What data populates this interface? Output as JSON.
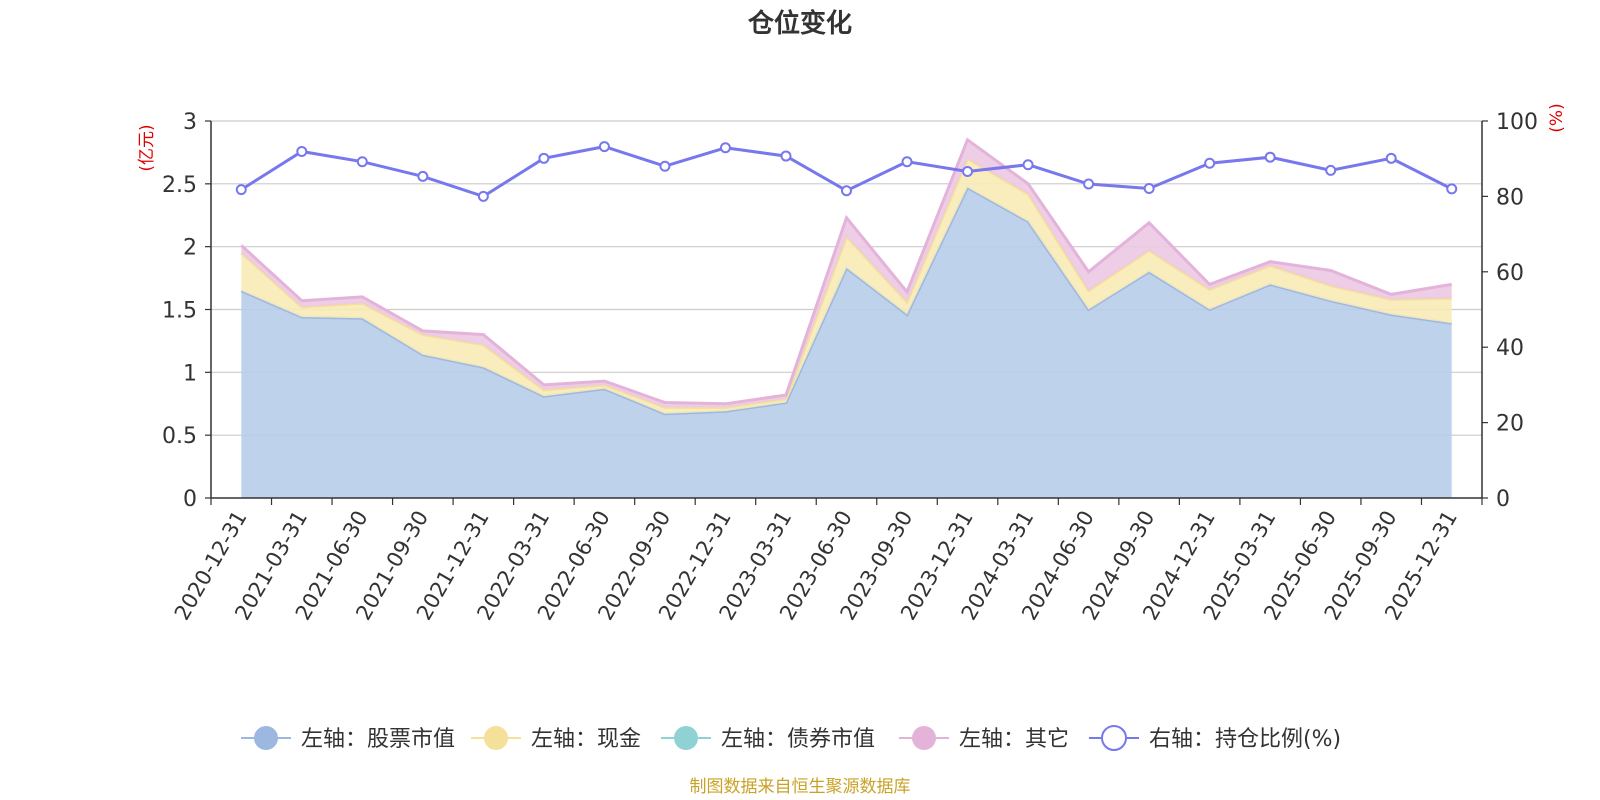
{
  "chart_data": {
    "type": "area",
    "title": "仓位变化",
    "left_axis_unit": "(亿元)",
    "right_axis_unit": "(%)",
    "ylim_left": [
      0,
      3
    ],
    "ylim_right": [
      0,
      100
    ],
    "left_ticks": [
      "0",
      "0.5",
      "1",
      "1.5",
      "2",
      "2.5",
      "3"
    ],
    "right_ticks": [
      "0",
      "20",
      "40",
      "60",
      "80",
      "100"
    ],
    "categories": [
      "2020-12-31",
      "2021-03-31",
      "2021-06-30",
      "2021-09-30",
      "2021-12-31",
      "2022-03-31",
      "2022-06-30",
      "2022-09-30",
      "2022-12-31",
      "2023-03-31",
      "2023-06-30",
      "2023-09-30",
      "2023-12-31",
      "2024-03-31",
      "2024-06-30",
      "2024-09-30",
      "2024-12-31",
      "2025-03-31",
      "2025-06-30",
      "2025-09-30",
      "2025-12-31"
    ],
    "series": [
      {
        "name": "左轴：股票市值",
        "axis": "left",
        "color": "#9db8e0",
        "fill": "#b7cdea",
        "values": [
          1.65,
          1.44,
          1.43,
          1.14,
          1.04,
          0.81,
          0.87,
          0.67,
          0.69,
          0.76,
          1.83,
          1.46,
          2.47,
          2.2,
          1.5,
          1.8,
          1.5,
          1.7,
          1.57,
          1.46,
          1.39
        ]
      },
      {
        "name": "左轴：现金",
        "axis": "left",
        "color": "#f5e09a",
        "fill": "#f8ebb7",
        "values": [
          0.3,
          0.08,
          0.12,
          0.16,
          0.18,
          0.05,
          0.03,
          0.05,
          0.03,
          0.03,
          0.25,
          0.1,
          0.23,
          0.22,
          0.15,
          0.17,
          0.16,
          0.15,
          0.12,
          0.12,
          0.2
        ]
      },
      {
        "name": "左轴：债券市值",
        "axis": "left",
        "color": "#8fd1d4",
        "fill": "#aadfe1",
        "values": [
          0,
          0,
          0,
          0,
          0,
          0,
          0,
          0,
          0,
          0,
          0,
          0,
          0,
          0,
          0,
          0,
          0,
          0,
          0,
          0,
          0
        ]
      },
      {
        "name": "左轴：其它",
        "axis": "left",
        "color": "#e4b3d9",
        "fill": "#ecc8e4",
        "values": [
          0.06,
          0.05,
          0.05,
          0.03,
          0.08,
          0.04,
          0.03,
          0.04,
          0.03,
          0.03,
          0.15,
          0.08,
          0.15,
          0.08,
          0.15,
          0.22,
          0.04,
          0.03,
          0.12,
          0.04,
          0.11
        ]
      },
      {
        "name": "右轴：持仓比例(%)",
        "axis": "right",
        "color": "#7777ee",
        "values": [
          81.8,
          91.9,
          89.2,
          85.3,
          80,
          90.1,
          93.2,
          88,
          92.9,
          90.7,
          81.5,
          89.2,
          86.6,
          88.4,
          83.3,
          82.1,
          88.8,
          90.4,
          86.9,
          90.1,
          82
        ]
      }
    ]
  },
  "footer": {
    "source": "制图数据来自恒生聚源数据库"
  }
}
